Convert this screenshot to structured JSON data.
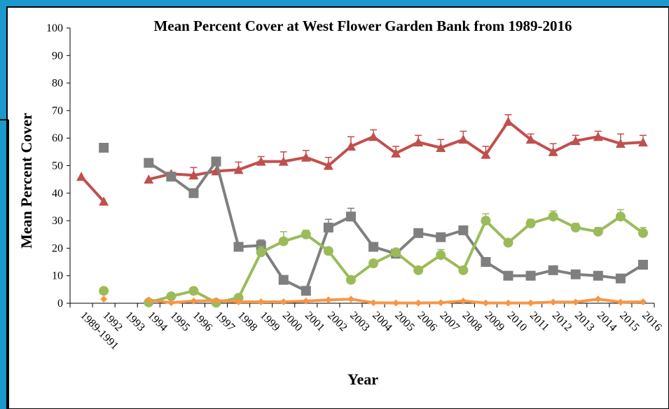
{
  "chart_data": {
    "type": "line",
    "title": "Mean Percent Cover at West Flower Garden Bank from 1989-2016",
    "xlabel": "Year",
    "ylabel": "Mean Percent Cover",
    "ylim": [
      0,
      100
    ],
    "yticks": [
      0,
      10,
      20,
      30,
      40,
      50,
      60,
      70,
      80,
      90,
      100
    ],
    "grid": false,
    "legend": "none",
    "categories": [
      "1989-1991",
      "1992",
      "1993",
      "1994",
      "1995",
      "1996",
      "1997",
      "1998",
      "1999",
      "2000",
      "2001",
      "2002",
      "2003",
      "2004",
      "2005",
      "2006",
      "2007",
      "2008",
      "2009",
      "2010",
      "2011",
      "2012",
      "2013",
      "2014",
      "2015",
      "2016"
    ],
    "series": [
      {
        "color": "#c0504d",
        "marker": "triangle",
        "x": [
          "1989-1991",
          "1992",
          "1994",
          "1995",
          "1996",
          "1997",
          "1998",
          "1999",
          "2000",
          "2001",
          "2002",
          "2003",
          "2004",
          "2005",
          "2006",
          "2007",
          "2008",
          "2009",
          "2010",
          "2011",
          "2012",
          "2013",
          "2014",
          "2015",
          "2016"
        ],
        "values": [
          46,
          37,
          45,
          47,
          46.5,
          48,
          48.5,
          51.5,
          51.5,
          53,
          50,
          57,
          60.5,
          54.5,
          58.5,
          56.5,
          59.5,
          54,
          66,
          59.5,
          55,
          59,
          60.5,
          58,
          58.5
        ],
        "segments": [
          [
            0,
            1
          ],
          [
            2,
            24
          ]
        ],
        "errors": [
          0,
          0,
          0,
          0,
          2.8,
          0,
          2.8,
          1.8,
          3.5,
          2.5,
          3,
          3.5,
          2.5,
          2.5,
          2.5,
          3,
          3,
          3,
          2.5,
          2,
          3,
          2,
          2,
          3.5,
          2.5
        ]
      },
      {
        "color": "#7f7f7f",
        "marker": "square",
        "x": [
          "1992",
          "1994",
          "1995",
          "1996",
          "1997",
          "1998",
          "1999",
          "2000",
          "2001",
          "2002",
          "2003",
          "2004",
          "2005",
          "2006",
          "2007",
          "2008",
          "2009",
          "2010",
          "2011",
          "2012",
          "2013",
          "2014",
          "2015",
          "2016"
        ],
        "values": [
          56.5,
          51,
          46,
          40,
          51.5,
          20.5,
          21,
          8.5,
          4.5,
          27.5,
          31.5,
          20.5,
          18,
          25.5,
          24,
          26.5,
          15,
          10,
          10,
          12,
          10.5,
          10,
          9,
          14
        ],
        "segments": [
          [
            1,
            23
          ]
        ],
        "errors": [
          0,
          0,
          0,
          0,
          0,
          1,
          2,
          0,
          0,
          3,
          3,
          1,
          0,
          1.5,
          0,
          1.5,
          0,
          0,
          0,
          0,
          0,
          0,
          0,
          0
        ]
      },
      {
        "color": "#9bbb59",
        "marker": "circle",
        "x": [
          "1992",
          "1994",
          "1995",
          "1996",
          "1997",
          "1998",
          "1999",
          "2000",
          "2001",
          "2002",
          "2003",
          "2004",
          "2005",
          "2006",
          "2007",
          "2008",
          "2009",
          "2010",
          "2011",
          "2012",
          "2013",
          "2014",
          "2015",
          "2016"
        ],
        "values": [
          4.5,
          0.3,
          2.5,
          4.5,
          0.2,
          2,
          18.5,
          22.5,
          25,
          19,
          8.5,
          14.5,
          18.5,
          12,
          17.5,
          12,
          30,
          22,
          29,
          31.5,
          27.5,
          26,
          31.5,
          25.5
        ],
        "segments": [
          [
            1,
            23
          ]
        ],
        "errors": [
          0,
          0,
          0,
          0,
          0,
          0,
          2,
          3.5,
          1.5,
          0,
          0,
          0,
          0,
          0,
          2,
          0,
          2.5,
          0,
          1.5,
          2,
          1.5,
          1.5,
          2.5,
          2
        ]
      },
      {
        "color": "#f79646",
        "marker": "diamond",
        "x": [
          "1992",
          "1994",
          "1995",
          "1996",
          "1997",
          "1998",
          "1999",
          "2000",
          "2001",
          "2002",
          "2003",
          "2004",
          "2005",
          "2006",
          "2007",
          "2008",
          "2009",
          "2010",
          "2011",
          "2012",
          "2013",
          "2014",
          "2015",
          "2016"
        ],
        "values": [
          1.5,
          1.2,
          0.2,
          0.8,
          1,
          0.5,
          0.5,
          0.5,
          0.8,
          1.2,
          1.5,
          0.2,
          0.1,
          0.1,
          0.2,
          0.8,
          0.1,
          0.1,
          0.1,
          0.4,
          0.4,
          1.5,
          0.4,
          0.5
        ],
        "segments": [
          [
            1,
            23
          ]
        ],
        "errors": [
          0,
          0,
          0,
          0,
          0,
          0,
          0,
          0,
          0,
          0,
          0,
          0,
          0,
          0,
          0,
          0,
          0,
          0,
          0,
          0,
          0,
          0,
          0,
          0
        ]
      }
    ]
  },
  "colors": {
    "frame_blue": "#1c99cc",
    "frame_border": "#000000",
    "axis": "#000000"
  }
}
